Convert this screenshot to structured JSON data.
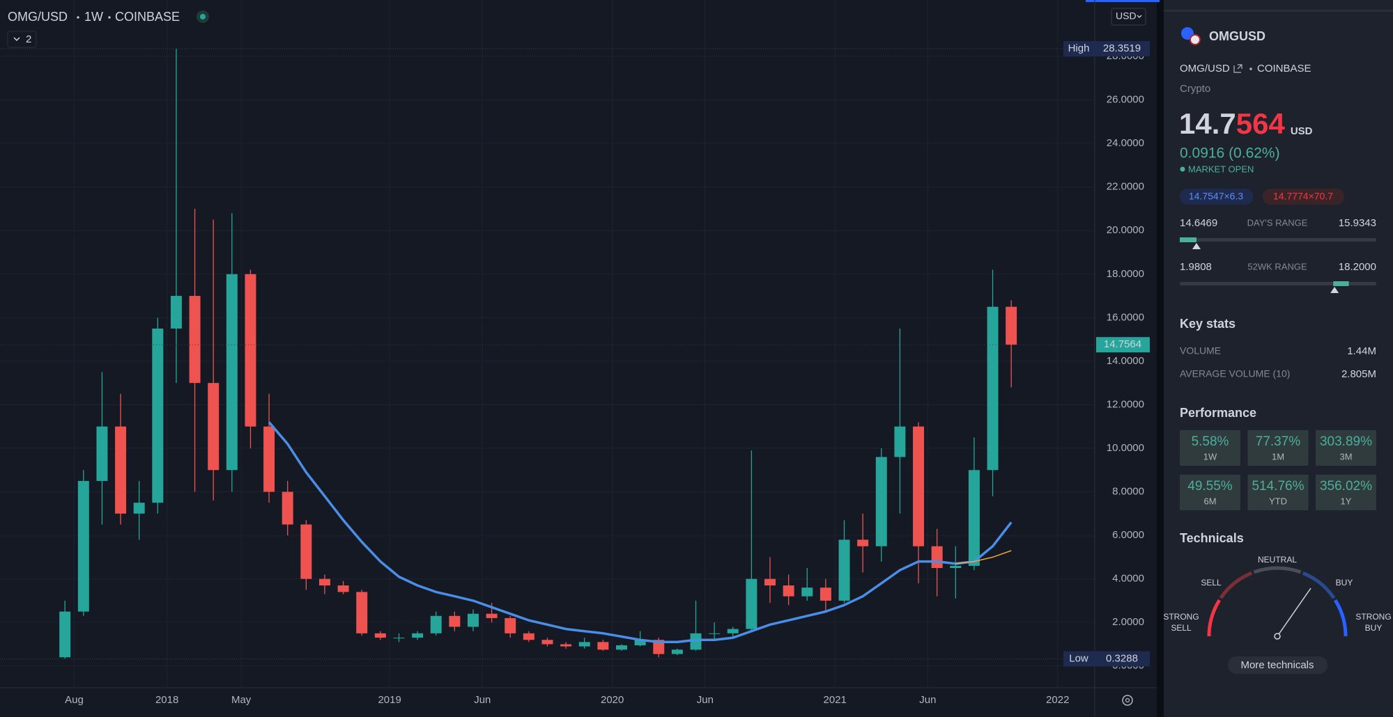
{
  "toolbar": {
    "symbol": "OMG/USD",
    "interval": "1W",
    "exchange": "COINBASE",
    "indicators": "2",
    "currency": "USD"
  },
  "chart_data": {
    "type": "candlestick",
    "x": [
      "2017-07",
      "2017-08",
      "2017-09",
      "2017-10",
      "2017-11",
      "2017-12",
      "2018-01",
      "2018-02",
      "2018-03",
      "2018-04",
      "2018-05",
      "2018-06",
      "2018-07",
      "2018-08",
      "2018-09",
      "2018-10",
      "2018-11",
      "2018-12",
      "2019-01",
      "2019-02",
      "2019-03",
      "2019-04",
      "2019-05",
      "2019-06",
      "2019-07",
      "2019-08",
      "2019-09",
      "2019-10",
      "2019-11",
      "2019-12",
      "2020-01",
      "2020-02",
      "2020-03",
      "2020-04",
      "2020-05",
      "2020-06",
      "2020-07",
      "2020-08",
      "2020-09",
      "2020-10",
      "2020-11",
      "2020-12",
      "2021-01",
      "2021-02",
      "2021-03",
      "2021-04",
      "2021-05",
      "2021-06",
      "2021-07",
      "2021-08",
      "2021-09",
      "2021-10"
    ],
    "open": [
      0.4,
      2.5,
      8.5,
      11,
      7,
      7.5,
      15.5,
      17,
      13,
      9,
      18,
      11,
      8,
      6.5,
      4,
      3.7,
      3.4,
      1.5,
      1.3,
      1.3,
      1.5,
      2.3,
      1.8,
      2.4,
      2.2,
      1.5,
      1.2,
      1.0,
      0.9,
      1.1,
      0.75,
      0.95,
      1.2,
      0.55,
      0.75,
      1.5,
      1.5,
      1.7,
      4.0,
      3.7,
      3.2,
      3.6,
      3.0,
      5.8,
      5.5,
      9.6,
      11.0,
      5.5,
      4.5,
      4.6,
      9.0,
      16.5
    ],
    "high": [
      3.0,
      9,
      13.5,
      12.5,
      8.5,
      16,
      28.3519,
      21,
      20.5,
      20.8,
      18.2,
      12.5,
      8.5,
      6.7,
      4.2,
      3.9,
      3.5,
      1.6,
      1.5,
      1.6,
      2.5,
      2.5,
      2.6,
      2.9,
      2.3,
      1.6,
      1.3,
      1.1,
      1.3,
      1.2,
      1.0,
      1.6,
      1.3,
      0.8,
      3.0,
      2.0,
      1.8,
      9.9,
      5.0,
      4.2,
      4.5,
      4.0,
      6.7,
      7.0,
      10.0,
      15.5,
      11.2,
      6.3,
      5.5,
      10.5,
      18.2,
      16.8
    ],
    "low": [
      0.3288,
      2.3,
      6.5,
      6.5,
      5.8,
      7,
      13,
      8,
      7.6,
      8,
      10,
      7.5,
      6,
      3.5,
      3.3,
      3.3,
      1.4,
      1.2,
      1.1,
      1.2,
      1.4,
      1.6,
      1.6,
      2.0,
      1.3,
      1.1,
      0.9,
      0.8,
      0.8,
      0.7,
      0.7,
      0.9,
      0.4,
      0.5,
      0.7,
      1.2,
      1.3,
      1.6,
      2.9,
      2.8,
      3.0,
      2.5,
      2.9,
      4.3,
      4.8,
      7.0,
      3.8,
      3.2,
      3.1,
      4.4,
      7.8,
      12.8
    ],
    "close": [
      2.5,
      8.5,
      11,
      7,
      7.5,
      15.5,
      17,
      13,
      9,
      18,
      11,
      8,
      6.5,
      4,
      3.7,
      3.4,
      1.5,
      1.3,
      1.3,
      1.5,
      2.3,
      1.8,
      2.4,
      2.2,
      1.5,
      1.2,
      1.0,
      0.9,
      1.1,
      0.75,
      0.95,
      1.2,
      0.55,
      0.75,
      1.5,
      1.5,
      1.7,
      4.0,
      3.7,
      3.2,
      3.6,
      3.0,
      5.8,
      5.5,
      9.6,
      11.0,
      5.5,
      4.5,
      4.6,
      9.0,
      16.5,
      14.7564
    ],
    "up_color": "#26a69a",
    "down_color": "#ef5350",
    "series": [
      {
        "color": "#4a8fe7",
        "x": [
          "2018-06",
          "2018-07",
          "2018-08",
          "2018-09",
          "2018-10",
          "2018-11",
          "2018-12",
          "2019-01",
          "2019-02",
          "2019-03",
          "2019-04",
          "2019-05",
          "2019-06",
          "2019-07",
          "2019-08",
          "2019-09",
          "2019-10",
          "2019-11",
          "2019-12",
          "2020-01",
          "2020-02",
          "2020-03",
          "2020-04",
          "2020-05",
          "2020-06",
          "2020-07",
          "2020-08",
          "2020-09",
          "2020-10",
          "2020-11",
          "2020-12",
          "2021-01",
          "2021-02",
          "2021-03",
          "2021-04",
          "2021-05",
          "2021-06",
          "2021-07",
          "2021-08",
          "2021-09",
          "2021-10"
        ],
        "values": [
          11.2,
          10.2,
          8.9,
          7.8,
          6.7,
          5.7,
          4.8,
          4.1,
          3.7,
          3.4,
          3.2,
          3.0,
          2.7,
          2.4,
          2.1,
          1.9,
          1.7,
          1.6,
          1.5,
          1.35,
          1.2,
          1.1,
          1.1,
          1.2,
          1.2,
          1.3,
          1.6,
          1.9,
          2.1,
          2.3,
          2.5,
          2.8,
          3.2,
          3.8,
          4.4,
          4.8,
          4.8,
          4.7,
          4.8,
          5.5,
          6.6
        ]
      },
      {
        "color": "#f0a63a",
        "x": [
          "2021-07",
          "2021-08",
          "2021-09",
          "2021-10"
        ],
        "values": [
          4.7,
          4.8,
          5.0,
          5.3
        ]
      }
    ],
    "xlim": [
      "2017-04",
      "2022-03"
    ],
    "xticks": [
      {
        "value": "2017-08",
        "label": "Aug"
      },
      {
        "value": "2018-01",
        "label": "2018"
      },
      {
        "value": "2018-05",
        "label": "May"
      },
      {
        "value": "2019-01",
        "label": "2019"
      },
      {
        "value": "2019-06",
        "label": "Jun"
      },
      {
        "value": "2020-01",
        "label": "2020"
      },
      {
        "value": "2020-06",
        "label": "Jun"
      },
      {
        "value": "2021-01",
        "label": "2021"
      },
      {
        "value": "2021-06",
        "label": "Jun"
      },
      {
        "value": "2022-01",
        "label": "2022"
      }
    ],
    "ylim": [
      -1,
      30.4
    ],
    "yticks": [
      {
        "value": 0,
        "label": "0.0000"
      },
      {
        "value": 2,
        "label": "2.0000"
      },
      {
        "value": 4,
        "label": "4.0000"
      },
      {
        "value": 6,
        "label": "6.0000"
      },
      {
        "value": 8,
        "label": "8.0000"
      },
      {
        "value": 10,
        "label": "10.0000"
      },
      {
        "value": 12,
        "label": "12.0000"
      },
      {
        "value": 14,
        "label": "14.0000"
      },
      {
        "value": 16,
        "label": "16.0000"
      },
      {
        "value": 18,
        "label": "18.0000"
      },
      {
        "value": 20,
        "label": "20.0000"
      },
      {
        "value": 22,
        "label": "22.0000"
      },
      {
        "value": 24,
        "label": "24.0000"
      },
      {
        "value": 26,
        "label": "26.0000"
      },
      {
        "value": 28,
        "label": "28.0000"
      }
    ],
    "grid": true,
    "high_label": "High",
    "low_label": "Low"
  },
  "details": {
    "symbol": "OMGUSD",
    "pair": "OMG/USD",
    "exchange": "COINBASE",
    "category": "Crypto",
    "price_main": "14.7",
    "price_tail": "564",
    "currency": "USD",
    "change": "0.0916 (0.62%)",
    "status": "MARKET OPEN",
    "bid": "14.7547×6.3",
    "ask": "14.7774×70.7",
    "days_range": {
      "label": "DAY'S RANGE",
      "low": 14.6469,
      "high": 15.9343
    },
    "week52_range": {
      "label": "52WK RANGE",
      "low": 1.9808,
      "high": {
        "value": 18.2,
        "label": "18.2000"
      }
    }
  },
  "key_stats": {
    "title": "Key stats",
    "rows": [
      {
        "label": "VOLUME",
        "value": "1.44M"
      },
      {
        "label": "AVERAGE VOLUME (10)",
        "value": "2.805M"
      }
    ]
  },
  "performance": {
    "title": "Performance",
    "tiles": [
      {
        "value": "5.58%",
        "period": "1W"
      },
      {
        "value": "77.37%",
        "period": "1M"
      },
      {
        "value": "303.89%",
        "period": "3M"
      },
      {
        "value": "49.55%",
        "period": "6M"
      },
      {
        "value": "514.76%",
        "period": "YTD"
      },
      {
        "value": "356.02%",
        "period": "1Y"
      }
    ]
  },
  "technicals": {
    "title": "Technicals",
    "gauge": [
      [
        "STRONG",
        "SELL"
      ],
      [
        "SELL"
      ],
      [
        "NEUTRAL"
      ],
      [
        "BUY"
      ],
      [
        "STRONG",
        "BUY"
      ]
    ],
    "button": "More technicals"
  }
}
